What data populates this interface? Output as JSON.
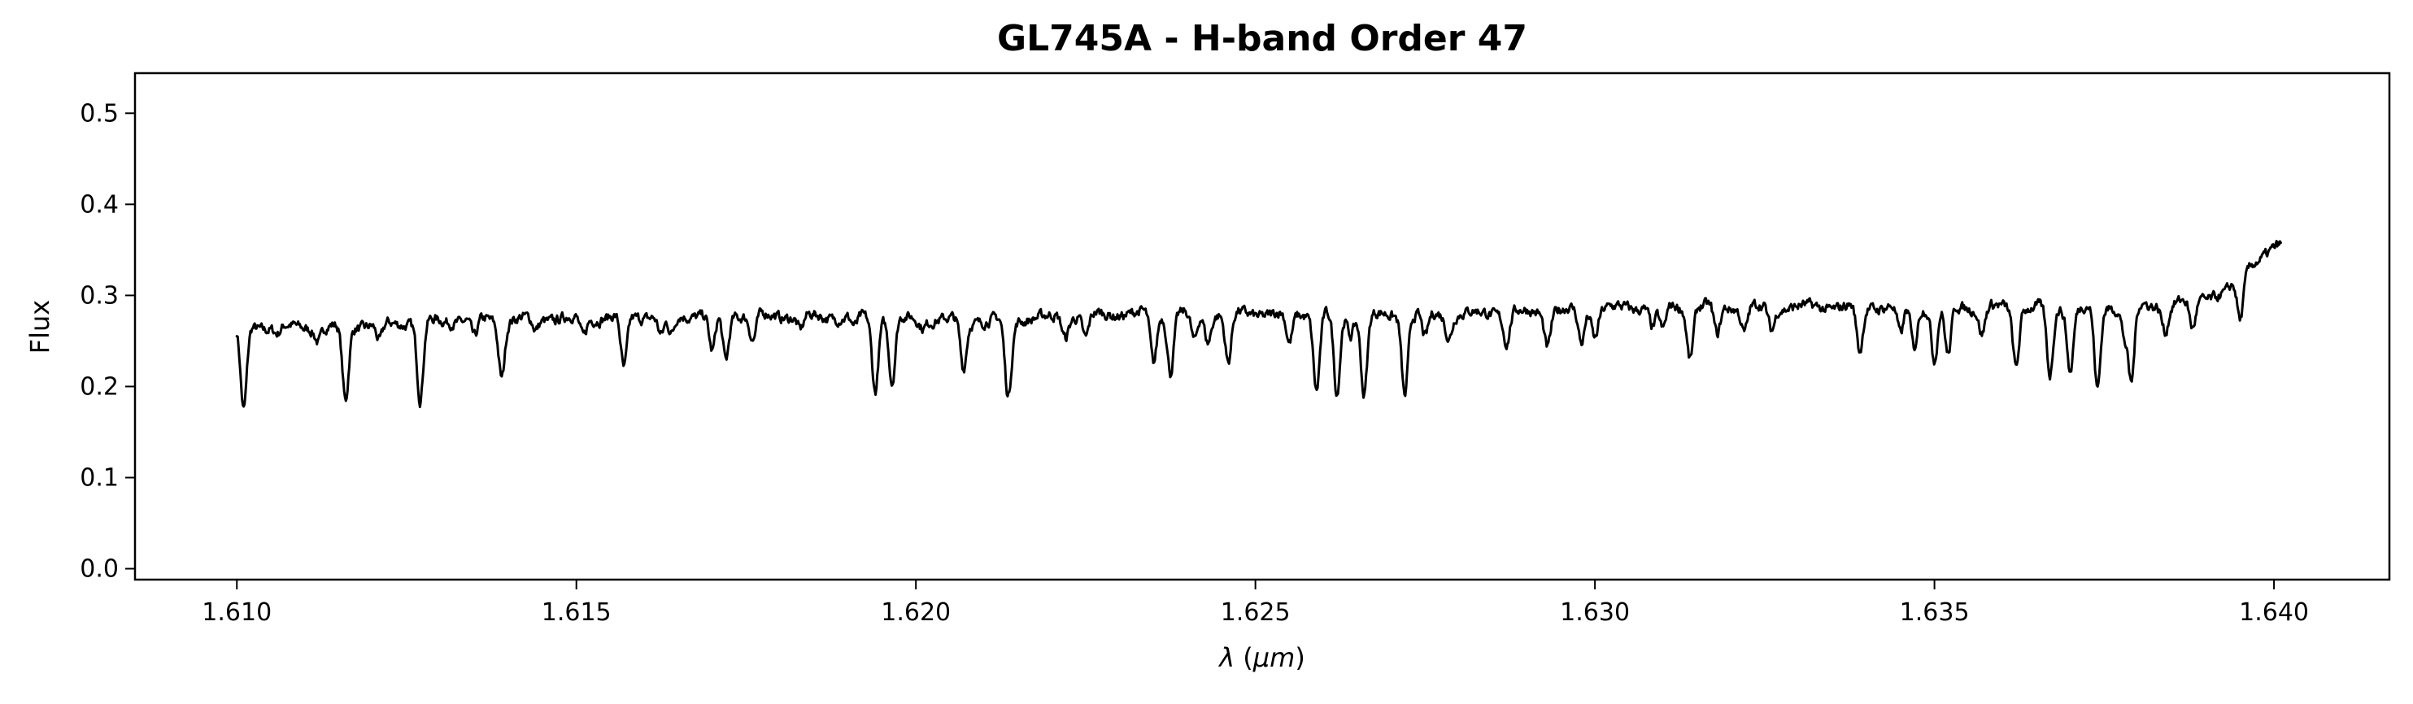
{
  "chart_data": {
    "type": "line",
    "title": "GL745A - H-band Order 47",
    "xlabel": {
      "symbol": "λ",
      "unit": "μm",
      "text": "λ (μm)"
    },
    "ylabel": "Flux",
    "xlim": [
      1.6085,
      1.6417
    ],
    "ylim": [
      -0.012,
      0.544
    ],
    "xticks": [
      1.61,
      1.615,
      1.62,
      1.625,
      1.63,
      1.635,
      1.64
    ],
    "xtick_labels": [
      "1.610",
      "1.615",
      "1.620",
      "1.625",
      "1.630",
      "1.635",
      "1.640"
    ],
    "yticks": [
      0.0,
      0.1,
      0.2,
      0.3,
      0.4,
      0.5
    ],
    "ytick_labels": [
      "0.0",
      "0.1",
      "0.2",
      "0.3",
      "0.4",
      "0.5"
    ],
    "grid": false,
    "legend": "none",
    "line_color": "#000000",
    "series": [
      {
        "x_start": 1.61,
        "x_end": 1.6401,
        "continuum": [
          [
            1.61,
            0.265
          ],
          [
            1.6115,
            0.265
          ],
          [
            1.613,
            0.272
          ],
          [
            1.615,
            0.275
          ],
          [
            1.617,
            0.279
          ],
          [
            1.619,
            0.276
          ],
          [
            1.621,
            0.272
          ],
          [
            1.623,
            0.28
          ],
          [
            1.625,
            0.28
          ],
          [
            1.627,
            0.278
          ],
          [
            1.629,
            0.282
          ],
          [
            1.631,
            0.288
          ],
          [
            1.633,
            0.287
          ],
          [
            1.635,
            0.288
          ],
          [
            1.637,
            0.286
          ],
          [
            1.6385,
            0.29
          ],
          [
            1.639,
            0.298
          ],
          [
            1.6393,
            0.302
          ],
          [
            1.6397,
            0.338
          ],
          [
            1.6401,
            0.354
          ]
        ],
        "absorption_lines": [
          [
            1.6101,
            0.172
          ],
          [
            1.6106,
            0.258
          ],
          [
            1.6112,
            0.251
          ],
          [
            1.6116,
            0.183
          ],
          [
            1.6121,
            0.248
          ],
          [
            1.6127,
            0.186
          ],
          [
            1.6135,
            0.252
          ],
          [
            1.6139,
            0.212
          ],
          [
            1.6144,
            0.262
          ],
          [
            1.6151,
            0.254
          ],
          [
            1.6157,
            0.217
          ],
          [
            1.6164,
            0.256
          ],
          [
            1.6172,
            0.228
          ],
          [
            1.6183,
            0.262
          ],
          [
            1.6191,
            0.264
          ],
          [
            1.6201,
            0.266
          ],
          [
            1.6207,
            0.256
          ],
          [
            1.6214,
            0.254
          ],
          [
            1.6225,
            0.252
          ],
          [
            1.6241,
            0.248
          ],
          [
            1.6255,
            0.246
          ],
          [
            1.6264,
            0.258
          ],
          [
            1.6275,
            0.252
          ],
          [
            1.6287,
            0.248
          ],
          [
            1.6298,
            0.248
          ],
          [
            1.631,
            0.26
          ],
          [
            1.6322,
            0.26
          ],
          [
            1.6339,
            0.266
          ],
          [
            1.6345,
            0.255
          ],
          [
            1.6352,
            0.232
          ],
          [
            1.6378,
            0.258
          ],
          [
            1.6388,
            0.262
          ],
          [
            1.6395,
            0.272
          ],
          [
            1.61625,
            0.255
          ],
          [
            1.617,
            0.236
          ],
          [
            1.6176,
            0.25
          ],
          [
            1.6194,
            0.196
          ],
          [
            1.61965,
            0.205
          ],
          [
            1.6207,
            0.236
          ],
          [
            1.62135,
            0.2
          ],
          [
            1.6222,
            0.255
          ],
          [
            1.6235,
            0.225
          ],
          [
            1.62375,
            0.217
          ],
          [
            1.6243,
            0.25
          ],
          [
            1.6246,
            0.225
          ],
          [
            1.6259,
            0.196
          ],
          [
            1.6262,
            0.19
          ],
          [
            1.6266,
            0.192
          ],
          [
            1.6272,
            0.192
          ],
          [
            1.62785,
            0.255
          ],
          [
            1.6293,
            0.245
          ],
          [
            1.63,
            0.255
          ],
          [
            1.63085,
            0.265
          ],
          [
            1.6314,
            0.232
          ],
          [
            1.6318,
            0.255
          ],
          [
            1.6326,
            0.262
          ],
          [
            1.6339,
            0.258
          ],
          [
            1.6347,
            0.243
          ],
          [
            1.635,
            0.23
          ],
          [
            1.6357,
            0.258
          ],
          [
            1.6362,
            0.223
          ],
          [
            1.6367,
            0.211
          ],
          [
            1.637,
            0.218
          ],
          [
            1.6374,
            0.196
          ],
          [
            1.6379,
            0.205
          ],
          [
            1.6384,
            0.262
          ]
        ]
      }
    ]
  }
}
